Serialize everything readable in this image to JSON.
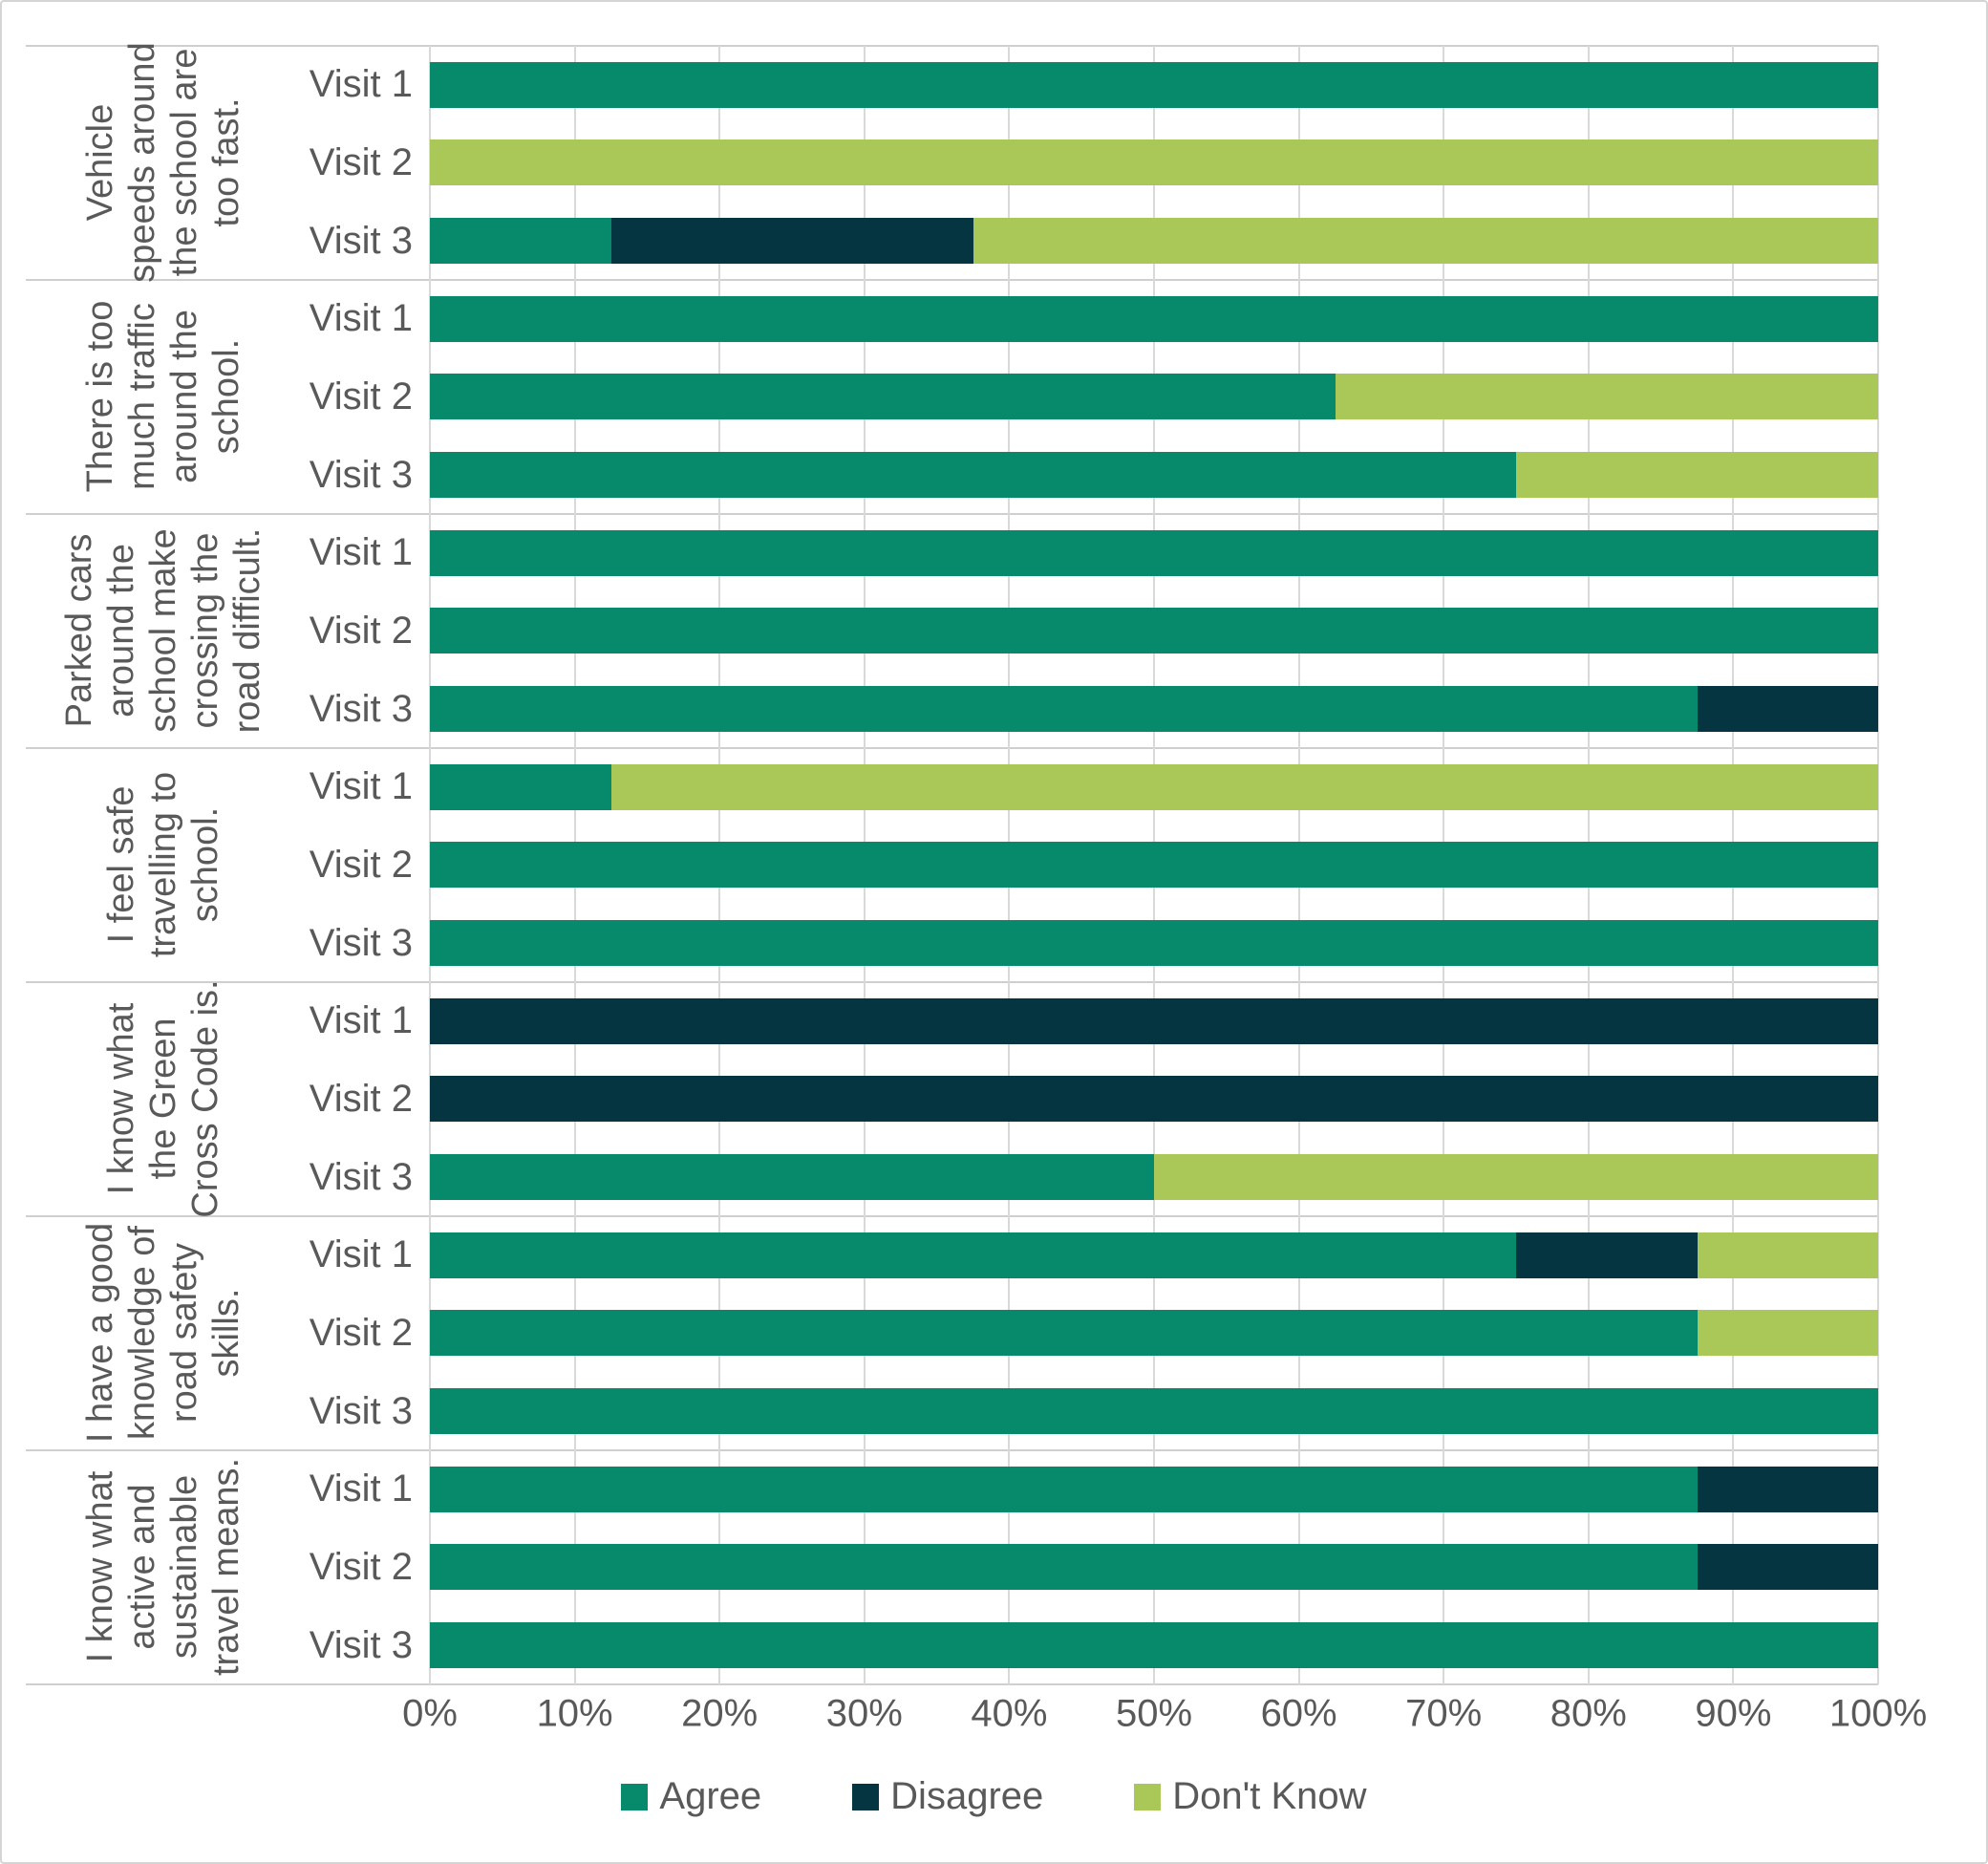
{
  "chart_data": {
    "type": "bar",
    "orientation": "horizontal",
    "stacked": true,
    "grid": true,
    "legend_position": "bottom",
    "x_axis": {
      "min": 0,
      "max": 100,
      "unit": "%",
      "ticks": [
        "0%",
        "10%",
        "20%",
        "30%",
        "40%",
        "50%",
        "60%",
        "70%",
        "80%",
        "90%",
        "100%"
      ]
    },
    "series": [
      {
        "key": "agree",
        "name": "Agree",
        "color": "#068a6b"
      },
      {
        "key": "disagree",
        "name": "Disagree",
        "color": "#043540"
      },
      {
        "key": "dont_know",
        "name": "Don't Know",
        "color": "#a9c857"
      }
    ],
    "groups": [
      {
        "label": "Vehicle speeds around the school are too fast.",
        "bars": [
          {
            "label": "Visit 1",
            "values": {
              "agree": 100,
              "disagree": 0,
              "dont_know": 0
            }
          },
          {
            "label": "Visit 2",
            "values": {
              "agree": 0,
              "disagree": 0,
              "dont_know": 100
            }
          },
          {
            "label": "Visit 3",
            "values": {
              "agree": 12.5,
              "disagree": 25,
              "dont_know": 62.5
            }
          }
        ]
      },
      {
        "label": "There is too much traffic around the school.",
        "bars": [
          {
            "label": "Visit 1",
            "values": {
              "agree": 100,
              "disagree": 0,
              "dont_know": 0
            }
          },
          {
            "label": "Visit 2",
            "values": {
              "agree": 62.5,
              "disagree": 0,
              "dont_know": 37.5
            }
          },
          {
            "label": "Visit 3",
            "values": {
              "agree": 75,
              "disagree": 0,
              "dont_know": 25
            }
          }
        ]
      },
      {
        "label": "Parked cars around the school make crossing the road difficult.",
        "bars": [
          {
            "label": "Visit 1",
            "values": {
              "agree": 100,
              "disagree": 0,
              "dont_know": 0
            }
          },
          {
            "label": "Visit 2",
            "values": {
              "agree": 100,
              "disagree": 0,
              "dont_know": 0
            }
          },
          {
            "label": "Visit 3",
            "values": {
              "agree": 87.5,
              "disagree": 12.5,
              "dont_know": 0
            }
          }
        ]
      },
      {
        "label": "I feel safe travelling to school.",
        "bars": [
          {
            "label": "Visit 1",
            "values": {
              "agree": 12.5,
              "disagree": 0,
              "dont_know": 87.5
            }
          },
          {
            "label": "Visit 2",
            "values": {
              "agree": 100,
              "disagree": 0,
              "dont_know": 0
            }
          },
          {
            "label": "Visit 3",
            "values": {
              "agree": 100,
              "disagree": 0,
              "dont_know": 0
            }
          }
        ]
      },
      {
        "label": "I know what the Green Cross Code is.",
        "bars": [
          {
            "label": "Visit 1",
            "values": {
              "agree": 0,
              "disagree": 100,
              "dont_know": 0
            }
          },
          {
            "label": "Visit 2",
            "values": {
              "agree": 0,
              "disagree": 100,
              "dont_know": 0
            }
          },
          {
            "label": "Visit 3",
            "values": {
              "agree": 50,
              "disagree": 0,
              "dont_know": 50
            }
          }
        ]
      },
      {
        "label": "I have a good knowledge of road safety skills.",
        "bars": [
          {
            "label": "Visit 1",
            "values": {
              "agree": 75,
              "disagree": 12.5,
              "dont_know": 12.5
            }
          },
          {
            "label": "Visit 2",
            "values": {
              "agree": 87.5,
              "disagree": 0,
              "dont_know": 12.5
            }
          },
          {
            "label": "Visit 3",
            "values": {
              "agree": 100,
              "disagree": 0,
              "dont_know": 0
            }
          }
        ]
      },
      {
        "label": "I know what active and sustainable travel means.",
        "bars": [
          {
            "label": "Visit 1",
            "values": {
              "agree": 87.5,
              "disagree": 12.5,
              "dont_know": 0
            }
          },
          {
            "label": "Visit 2",
            "values": {
              "agree": 87.5,
              "disagree": 12.5,
              "dont_know": 0
            }
          },
          {
            "label": "Visit 3",
            "values": {
              "agree": 100,
              "disagree": 0,
              "dont_know": 0
            }
          }
        ]
      }
    ],
    "colors": {
      "text": "#595959",
      "gridline": "#d9d9d9",
      "separator": "#cfcfcf",
      "border": "#d4d4d4"
    }
  }
}
